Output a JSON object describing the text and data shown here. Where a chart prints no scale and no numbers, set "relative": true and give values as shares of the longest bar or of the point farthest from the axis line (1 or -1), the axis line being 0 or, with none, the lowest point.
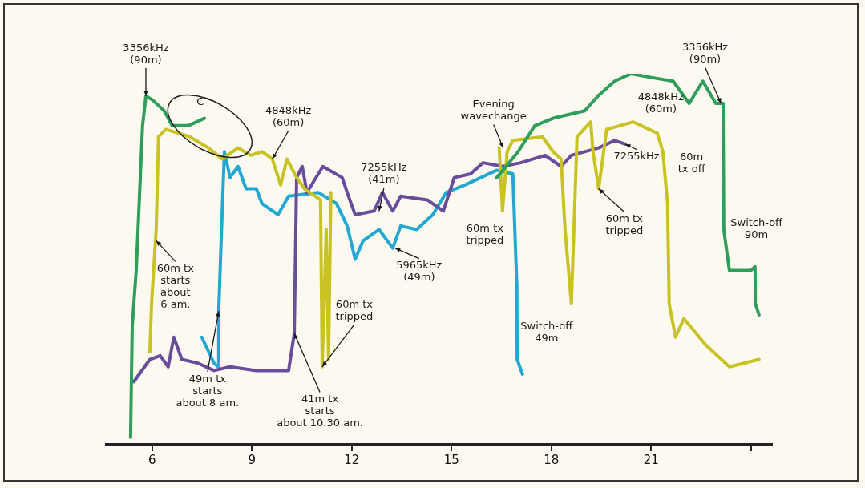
{
  "chart_data": {
    "type": "line",
    "relative": true,
    "xlim": [
      4.63,
      24.63
    ],
    "xticks": [
      6,
      9,
      12,
      15,
      18,
      21,
      {
        "value": 24,
        "label": null
      }
    ],
    "grid": false,
    "series": [
      {
        "color": "#2e9e5a",
        "x": [
          5.35,
          5.4,
          5.52,
          5.71,
          5.81,
          6.0,
          6.36,
          6.6,
          7.08,
          7.57,
          10,
          16.36,
          17.0,
          17.5,
          18.05,
          19.0,
          19.4,
          19.9,
          20.39,
          21.0,
          21.66,
          22.14,
          22.55,
          22.94,
          23.16,
          23.18,
          23.35,
          24.0,
          24.12,
          24.13,
          24.24
        ],
        "values": [
          0.02,
          0.32,
          0.47,
          0.86,
          0.94,
          0.93,
          0.9,
          0.86,
          0.86,
          0.88,
          null,
          0.72,
          0.79,
          0.86,
          0.88,
          0.9,
          0.94,
          0.98,
          1.0,
          0.99,
          0.98,
          0.92,
          0.98,
          0.92,
          0.92,
          0.58,
          0.47,
          0.47,
          0.48,
          0.38,
          0.35
        ]
      },
      {
        "color": "#c9c322",
        "x": [
          5.93,
          5.98,
          6.12,
          6.19,
          6.41,
          7.13,
          7.69,
          8.1,
          8.58,
          8.96,
          9.3,
          9.61,
          9.86,
          10.05,
          10.34,
          10.58,
          11.06,
          11.11,
          11.23,
          11.3,
          11.37,
          14,
          16.43,
          16.53,
          16.67,
          16.84,
          17.73,
          18.05,
          18.29,
          18.41,
          18.6,
          18.77,
          19.18,
          19.25,
          19.42,
          19.66,
          20.46,
          21.18,
          21.35,
          21.49,
          21.54,
          21.73,
          21.98,
          22.63,
          23.35,
          24.24
        ],
        "values": [
          0.25,
          0.38,
          0.58,
          0.83,
          0.85,
          0.83,
          0.8,
          0.77,
          0.8,
          0.78,
          0.79,
          0.77,
          0.7,
          0.77,
          0.72,
          0.69,
          0.66,
          0.21,
          0.58,
          0.23,
          0.68,
          null,
          0.8,
          0.63,
          0.79,
          0.82,
          0.83,
          0.79,
          0.77,
          0.58,
          0.38,
          0.83,
          0.87,
          0.79,
          0.69,
          0.85,
          0.87,
          0.84,
          0.79,
          0.65,
          0.38,
          0.29,
          0.34,
          0.27,
          0.21,
          0.23
        ]
      },
      {
        "color": "#6a4c9c",
        "x": [
          5.45,
          5.93,
          6.24,
          6.48,
          6.65,
          6.89,
          7.37,
          7.86,
          8.34,
          9.13,
          10.1,
          10.27,
          10.34,
          10.51,
          10.65,
          11.13,
          11.71,
          11.86,
          12.1,
          12.67,
          12.92,
          13.23,
          13.47,
          14.27,
          14.75,
          15.08,
          15.57,
          15.95,
          16.53,
          17.08,
          17.81,
          18.29,
          18.6,
          19.42,
          19.9,
          20.22
        ],
        "values": [
          0.17,
          0.23,
          0.24,
          0.21,
          0.29,
          0.23,
          0.22,
          0.2,
          0.21,
          0.2,
          0.2,
          0.3,
          0.72,
          0.75,
          0.68,
          0.75,
          0.72,
          0.68,
          0.62,
          0.63,
          0.68,
          0.63,
          0.67,
          0.66,
          0.63,
          0.72,
          0.73,
          0.76,
          0.75,
          0.76,
          0.78,
          0.75,
          0.78,
          0.8,
          0.82,
          0.81
        ]
      },
      {
        "color": "#23a8d4",
        "x": [
          7.49,
          7.86,
          7.98,
          8.0,
          8.1,
          8.17,
          8.34,
          8.58,
          8.82,
          9.13,
          9.3,
          9.78,
          10.1,
          10.99,
          11.54,
          11.86,
          12.1,
          12.34,
          12.82,
          13.23,
          13.47,
          13.95,
          14.43,
          14.84,
          15.4,
          15.88,
          16.36,
          16.84,
          16.96,
          16.97,
          17.13
        ],
        "values": [
          0.29,
          0.22,
          0.21,
          0.36,
          0.62,
          0.79,
          0.72,
          0.75,
          0.69,
          0.69,
          0.65,
          0.62,
          0.67,
          0.68,
          0.65,
          0.59,
          0.5,
          0.55,
          0.58,
          0.53,
          0.59,
          0.58,
          0.62,
          0.68,
          0.7,
          0.72,
          0.74,
          0.73,
          0.43,
          0.23,
          0.19
        ]
      }
    ],
    "annotations": [
      {
        "text": "3356kHz\n(90m)",
        "x": 5.81,
        "y": 0.94
      },
      {
        "text": "C",
        "x": 7.3,
        "y": 0.88
      },
      {
        "text": "4848kHz\n(60m)",
        "x": 9.61,
        "y": 0.77
      },
      {
        "text": "7255kHz\n(41m)",
        "x": 12.82,
        "y": 0.63
      },
      {
        "text": "Evening\nwavechange",
        "x": 16.55,
        "y": 0.8
      },
      {
        "text": "3356kHz\n(90m)",
        "x": 23.1,
        "y": 0.92
      },
      {
        "text": "4848kHz\n(60m)",
        "x": 21.0,
        "y": 0.85
      },
      {
        "text": "7255kHz",
        "x": 20.22,
        "y": 0.81
      },
      {
        "text": "60m\ntx off",
        "x": 21.49,
        "y": 0.65
      },
      {
        "text": "Switch-off\n90m",
        "x": 23.2,
        "y": 0.58
      },
      {
        "text": "60m tx\nstarts\nabout\n6 am.",
        "x": 6.12,
        "y": 0.55
      },
      {
        "text": "49m tx\nstarts\nabout 8 am.",
        "x": 8.0,
        "y": 0.36
      },
      {
        "text": "41m tx\nstarts\nabout 10.30 am.",
        "x": 10.27,
        "y": 0.3
      },
      {
        "text": "60m tx\ntripped",
        "x": 11.11,
        "y": 0.21
      },
      {
        "text": "5965kHz\n(49m)",
        "x": 13.3,
        "y": 0.53
      },
      {
        "text": "60m tx\ntripped",
        "x": 16.53,
        "y": 0.63
      },
      {
        "text": "Switch-off\n49m",
        "x": 17.13,
        "y": 0.19
      },
      {
        "text": "60m tx\ntripped",
        "x": 19.42,
        "y": 0.69
      }
    ]
  }
}
